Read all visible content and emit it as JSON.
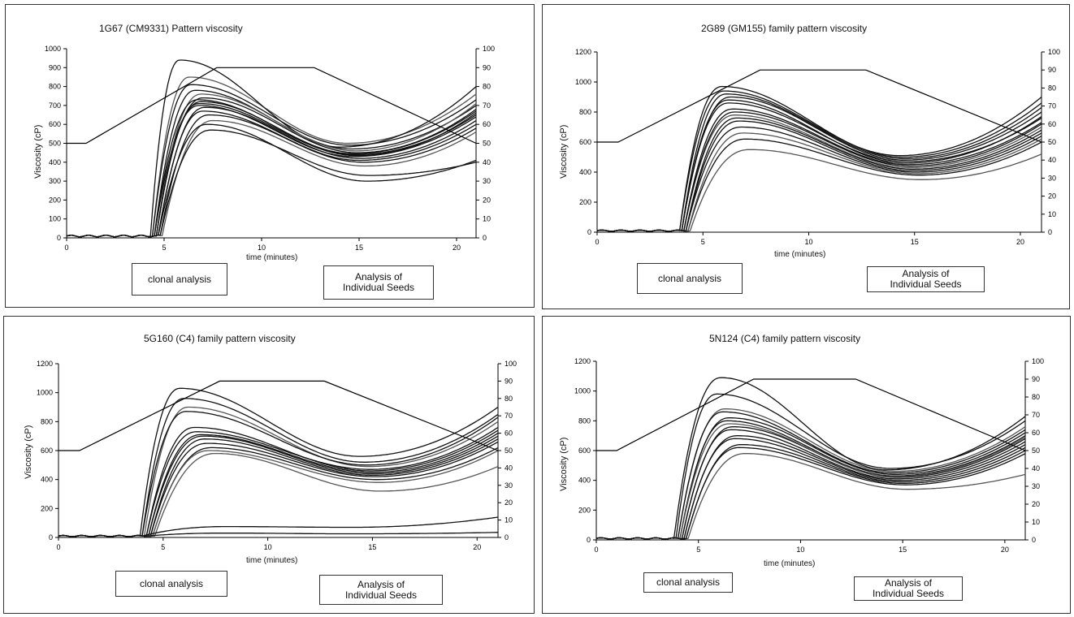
{
  "charts": [
    {
      "title": "1G67 (CM9331) Pattern viscosity",
      "ylabel": "Viscosity (cP)",
      "xlabel": "time (minutes)",
      "left_box": "clonal analysis",
      "right_box": [
        "Analysis of",
        "Individual Seeds"
      ]
    },
    {
      "title": "2G89 (GM155) family pattern viscosity",
      "ylabel": "Viscosity (cP)",
      "xlabel": "time (minutes)",
      "left_box": "clonal analysis",
      "right_box": [
        "Analysis of",
        "Individual Seeds"
      ]
    },
    {
      "title": "5G160 (C4) family pattern viscosity",
      "ylabel": "Viscosity (cP)",
      "xlabel": "time (minutes)",
      "left_box": "clonal analysis",
      "right_box": [
        "Analysis of",
        "Individual Seeds"
      ]
    },
    {
      "title": "5N124 (C4) family pattern viscosity",
      "ylabel": "Viscosity (cP)",
      "xlabel": "time (minutes)",
      "left_box": "clonal analysis",
      "right_box": [
        "Analysis of",
        "Individual Seeds"
      ]
    }
  ],
  "chart_data": [
    {
      "type": "line",
      "title": "1G67 (CM9331) Pattern viscosity",
      "xlabel": "time (minutes)",
      "ylabel": "Viscosity (cP)",
      "xlim": [
        0,
        21
      ],
      "ylim": [
        0,
        1000
      ],
      "y2lim": [
        0,
        100
      ],
      "x_ticks": [
        0,
        5,
        10,
        15,
        20
      ],
      "y_ticks": [
        0,
        100,
        200,
        300,
        400,
        500,
        600,
        700,
        800,
        900,
        1000
      ],
      "y2_ticks": [
        0,
        10,
        20,
        30,
        40,
        50,
        60,
        70,
        80,
        90,
        100
      ],
      "temperature_profile": {
        "x": [
          0,
          1,
          7.7,
          12.7,
          21
        ],
        "y2": [
          50,
          50,
          90,
          90,
          50
        ]
      },
      "curves": [
        {
          "onset": 4.6,
          "peak_t": 6.9,
          "peak": 720,
          "trough_t": 14.8,
          "trough": 440,
          "final": 650
        },
        {
          "onset": 4.5,
          "peak_t": 6.6,
          "peak": 780,
          "trough_t": 14.6,
          "trough": 470,
          "final": 700
        },
        {
          "onset": 4.4,
          "peak_t": 6.3,
          "peak": 850,
          "trough_t": 14.4,
          "trough": 500,
          "final": 760
        },
        {
          "onset": 4.7,
          "peak_t": 7.1,
          "peak": 690,
          "trough_t": 15.0,
          "trough": 420,
          "final": 620
        },
        {
          "onset": 4.8,
          "peak_t": 7.3,
          "peak": 650,
          "trough_t": 15.2,
          "trough": 400,
          "final": 580
        },
        {
          "onset": 4.6,
          "peak_t": 7.0,
          "peak": 740,
          "trough_t": 14.9,
          "trough": 450,
          "final": 680
        },
        {
          "onset": 4.5,
          "peak_t": 6.8,
          "peak": 700,
          "trough_t": 14.7,
          "trough": 430,
          "final": 640
        },
        {
          "onset": 4.9,
          "peak_t": 7.5,
          "peak": 620,
          "trough_t": 15.3,
          "trough": 380,
          "final": 560
        },
        {
          "onset": 4.3,
          "peak_t": 5.8,
          "peak": 940,
          "trough_t": 14.0,
          "trough": 480,
          "final": 800
        },
        {
          "onset": 4.4,
          "peak_t": 6.4,
          "peak": 810,
          "trough_t": 14.5,
          "trough": 490,
          "final": 730
        },
        {
          "onset": 4.7,
          "peak_t": 7.2,
          "peak": 600,
          "trough_t": 15.4,
          "trough": 300,
          "final": 410
        },
        {
          "onset": 4.8,
          "peak_t": 7.4,
          "peak": 570,
          "trough_t": 15.5,
          "trough": 330,
          "final": 400
        },
        {
          "onset": 4.6,
          "peak_t": 6.9,
          "peak": 760,
          "trough_t": 14.8,
          "trough": 460,
          "final": 710
        },
        {
          "onset": 4.5,
          "peak_t": 6.7,
          "peak": 730,
          "trough_t": 14.7,
          "trough": 445,
          "final": 670
        },
        {
          "onset": 4.7,
          "peak_t": 7.0,
          "peak": 670,
          "trough_t": 15.0,
          "trough": 410,
          "final": 600
        },
        {
          "onset": 4.6,
          "peak_t": 6.8,
          "peak": 710,
          "trough_t": 14.9,
          "trough": 435,
          "final": 660
        }
      ]
    },
    {
      "type": "line",
      "title": "2G89 (GM155) family pattern viscosity",
      "xlabel": "time (minutes)",
      "ylabel": "Viscosity (cP)",
      "xlim": [
        0,
        21
      ],
      "ylim": [
        0,
        1200
      ],
      "y2lim": [
        0,
        100
      ],
      "x_ticks": [
        0,
        5,
        10,
        15,
        20
      ],
      "y_ticks": [
        0,
        200,
        400,
        600,
        800,
        1000,
        1200
      ],
      "y2_ticks": [
        0,
        10,
        20,
        30,
        40,
        50,
        60,
        70,
        80,
        90,
        100
      ],
      "temperature_profile": {
        "x": [
          0,
          1,
          7.7,
          12.7,
          21
        ],
        "y2": [
          50,
          50,
          90,
          90,
          50
        ]
      },
      "curves": [
        {
          "onset": 4.0,
          "peak_t": 6.2,
          "peak": 860,
          "trough_t": 14.6,
          "trough": 470,
          "final": 760
        },
        {
          "onset": 3.9,
          "peak_t": 5.9,
          "peak": 970,
          "trough_t": 14.4,
          "trough": 500,
          "final": 860
        },
        {
          "onset": 4.1,
          "peak_t": 6.5,
          "peak": 780,
          "trough_t": 14.8,
          "trough": 430,
          "final": 700
        },
        {
          "onset": 4.2,
          "peak_t": 6.8,
          "peak": 700,
          "trough_t": 15.0,
          "trough": 400,
          "final": 640
        },
        {
          "onset": 4.3,
          "peak_t": 7.0,
          "peak": 620,
          "trough_t": 15.2,
          "trough": 380,
          "final": 600
        },
        {
          "onset": 4.0,
          "peak_t": 6.3,
          "peak": 900,
          "trough_t": 14.5,
          "trough": 480,
          "final": 800
        },
        {
          "onset": 4.1,
          "peak_t": 6.4,
          "peak": 820,
          "trough_t": 14.7,
          "trough": 450,
          "final": 730
        },
        {
          "onset": 4.4,
          "peak_t": 7.2,
          "peak": 550,
          "trough_t": 15.3,
          "trough": 350,
          "final": 520
        },
        {
          "onset": 3.9,
          "peak_t": 6.0,
          "peak": 940,
          "trough_t": 14.3,
          "trough": 510,
          "final": 900
        },
        {
          "onset": 4.2,
          "peak_t": 6.6,
          "peak": 760,
          "trough_t": 14.9,
          "trough": 420,
          "final": 680
        },
        {
          "onset": 4.0,
          "peak_t": 6.2,
          "peak": 880,
          "trough_t": 14.6,
          "trough": 460,
          "final": 770
        },
        {
          "onset": 4.1,
          "peak_t": 6.5,
          "peak": 800,
          "trough_t": 14.8,
          "trough": 440,
          "final": 720
        },
        {
          "onset": 4.3,
          "peak_t": 6.9,
          "peak": 660,
          "trough_t": 15.1,
          "trough": 390,
          "final": 620
        },
        {
          "onset": 4.0,
          "peak_t": 6.1,
          "peak": 920,
          "trough_t": 14.5,
          "trough": 490,
          "final": 830
        },
        {
          "onset": 4.2,
          "peak_t": 6.7,
          "peak": 740,
          "trough_t": 14.9,
          "trough": 410,
          "final": 660
        }
      ]
    },
    {
      "type": "line",
      "title": "5G160 (C4) family pattern viscosity",
      "xlabel": "time (minutes)",
      "ylabel": "Viscosity (cP)",
      "xlim": [
        0,
        21
      ],
      "ylim": [
        0,
        1200
      ],
      "y2lim": [
        0,
        100
      ],
      "x_ticks": [
        0,
        5,
        10,
        15,
        20
      ],
      "y_ticks": [
        0,
        200,
        400,
        600,
        800,
        1000,
        1200
      ],
      "y2_ticks": [
        0,
        10,
        20,
        30,
        40,
        50,
        60,
        70,
        80,
        90,
        100
      ],
      "temperature_profile": {
        "x": [
          0,
          1,
          7.7,
          12.7,
          21
        ],
        "y2": [
          50,
          50,
          90,
          90,
          50
        ]
      },
      "curves": [
        {
          "onset": 3.9,
          "peak_t": 5.8,
          "peak": 1030,
          "trough_t": 14.4,
          "trough": 560,
          "final": 900
        },
        {
          "onset": 4.0,
          "peak_t": 6.0,
          "peak": 960,
          "trough_t": 14.6,
          "trough": 520,
          "final": 850
        },
        {
          "onset": 4.1,
          "peak_t": 6.2,
          "peak": 900,
          "trough_t": 14.8,
          "trough": 490,
          "final": 800
        },
        {
          "onset": 4.2,
          "peak_t": 6.6,
          "peak": 730,
          "trough_t": 14.9,
          "trough": 470,
          "final": 760
        },
        {
          "onset": 4.3,
          "peak_t": 6.9,
          "peak": 700,
          "trough_t": 15.0,
          "trough": 440,
          "final": 700
        },
        {
          "onset": 4.4,
          "peak_t": 7.1,
          "peak": 650,
          "trough_t": 15.1,
          "trough": 420,
          "final": 660
        },
        {
          "onset": 4.5,
          "peak_t": 7.3,
          "peak": 620,
          "trough_t": 15.2,
          "trough": 400,
          "final": 620
        },
        {
          "onset": 4.6,
          "peak_t": 7.5,
          "peak": 580,
          "trough_t": 15.4,
          "trough": 320,
          "final": 490
        },
        {
          "onset": 4.0,
          "peak_t": 6.1,
          "peak": 870,
          "trough_t": 14.7,
          "trough": 500,
          "final": 830
        },
        {
          "onset": 4.2,
          "peak_t": 6.5,
          "peak": 760,
          "trough_t": 14.9,
          "trough": 460,
          "final": 740
        },
        {
          "onset": 4.4,
          "peak_t": 7.0,
          "peak": 680,
          "trough_t": 15.0,
          "trough": 430,
          "final": 680
        },
        {
          "onset": 4.3,
          "peak_t": 6.8,
          "peak": 710,
          "trough_t": 15.0,
          "trough": 450,
          "final": 720
        },
        {
          "onset": 4.5,
          "peak_t": 7.2,
          "peak": 600,
          "trough_t": 15.3,
          "trough": 380,
          "final": 600
        },
        {
          "onset": 4.0,
          "peak_t": 8.0,
          "peak": 75,
          "trough_t": 14.0,
          "trough": 70,
          "final": 140
        },
        {
          "onset": 4.2,
          "peak_t": 8.0,
          "peak": 30,
          "trough_t": 14.0,
          "trough": 25,
          "final": 35
        }
      ]
    },
    {
      "type": "line",
      "title": "5N124 (C4) family pattern viscosity",
      "xlabel": "time (minutes)",
      "ylabel": "Viscosity (cP)",
      "xlim": [
        0,
        21
      ],
      "ylim": [
        0,
        1200
      ],
      "y2lim": [
        0,
        100
      ],
      "x_ticks": [
        0,
        5,
        10,
        15,
        20
      ],
      "y_ticks": [
        0,
        200,
        400,
        600,
        800,
        1000,
        1200
      ],
      "y2_ticks": [
        0,
        10,
        20,
        30,
        40,
        50,
        60,
        70,
        80,
        90,
        100
      ],
      "temperature_profile": {
        "x": [
          0,
          1,
          7.7,
          12.7,
          21
        ],
        "y2": [
          50,
          50,
          90,
          90,
          50
        ]
      },
      "curves": [
        {
          "onset": 3.8,
          "peak_t": 6.1,
          "peak": 1090,
          "trough_t": 14.2,
          "trough": 470,
          "final": 830
        },
        {
          "onset": 3.9,
          "peak_t": 5.9,
          "peak": 980,
          "trough_t": 14.4,
          "trough": 480,
          "final": 800
        },
        {
          "onset": 4.0,
          "peak_t": 6.3,
          "peak": 880,
          "trough_t": 14.5,
          "trough": 460,
          "final": 760
        },
        {
          "onset": 4.1,
          "peak_t": 6.5,
          "peak": 820,
          "trough_t": 14.6,
          "trough": 440,
          "final": 720
        },
        {
          "onset": 4.2,
          "peak_t": 6.7,
          "peak": 760,
          "trough_t": 14.7,
          "trough": 420,
          "final": 680
        },
        {
          "onset": 4.3,
          "peak_t": 6.9,
          "peak": 700,
          "trough_t": 14.8,
          "trough": 400,
          "final": 640
        },
        {
          "onset": 4.4,
          "peak_t": 7.1,
          "peak": 640,
          "trough_t": 15.0,
          "trough": 380,
          "final": 600
        },
        {
          "onset": 4.5,
          "peak_t": 7.3,
          "peak": 580,
          "trough_t": 15.2,
          "trough": 340,
          "final": 440
        },
        {
          "onset": 4.0,
          "peak_t": 6.2,
          "peak": 860,
          "trough_t": 14.5,
          "trough": 450,
          "final": 740
        },
        {
          "onset": 4.1,
          "peak_t": 6.4,
          "peak": 800,
          "trough_t": 14.6,
          "trough": 430,
          "final": 700
        },
        {
          "onset": 4.2,
          "peak_t": 6.6,
          "peak": 740,
          "trough_t": 14.7,
          "trough": 410,
          "final": 660
        },
        {
          "onset": 4.3,
          "peak_t": 6.8,
          "peak": 680,
          "trough_t": 14.9,
          "trough": 390,
          "final": 620
        },
        {
          "onset": 4.1,
          "peak_t": 6.5,
          "peak": 780,
          "trough_t": 14.6,
          "trough": 425,
          "final": 690
        },
        {
          "onset": 4.4,
          "peak_t": 7.0,
          "peak": 620,
          "trough_t": 15.1,
          "trough": 370,
          "final": 580
        }
      ]
    }
  ]
}
